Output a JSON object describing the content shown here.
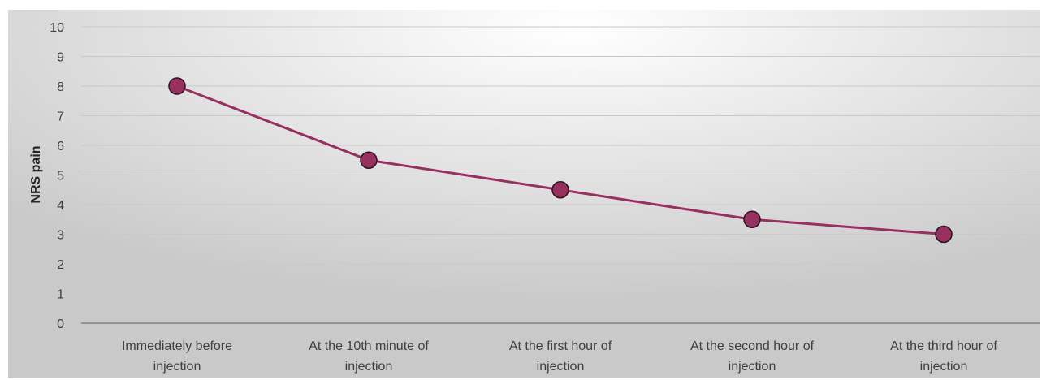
{
  "chart_data": {
    "type": "line",
    "title": "",
    "xlabel": "",
    "ylabel": "NRS pain",
    "ylim": [
      0,
      10
    ],
    "yticks": [
      "0",
      "1",
      "2",
      "3",
      "4",
      "5",
      "6",
      "7",
      "8",
      "9",
      "10"
    ],
    "categories": [
      [
        "Immediately before",
        "injection"
      ],
      [
        "At the 10th minute of",
        "injection"
      ],
      [
        "At the first hour of",
        "injection"
      ],
      [
        "At the second hour of",
        "injection"
      ],
      [
        "At the third hour of",
        "injection"
      ]
    ],
    "series": [
      {
        "values": [
          8,
          5.5,
          4.5,
          3.5,
          3
        ]
      }
    ],
    "grid": true,
    "legend": "none",
    "colors": {
      "line": "#97305f",
      "marker_fill": "#97305f",
      "marker_stroke": "#2a1620",
      "grid": "#c9c9c9",
      "axis": "#808080",
      "background_center": "#ffffff",
      "background_edge": "#c9c9c9"
    }
  }
}
